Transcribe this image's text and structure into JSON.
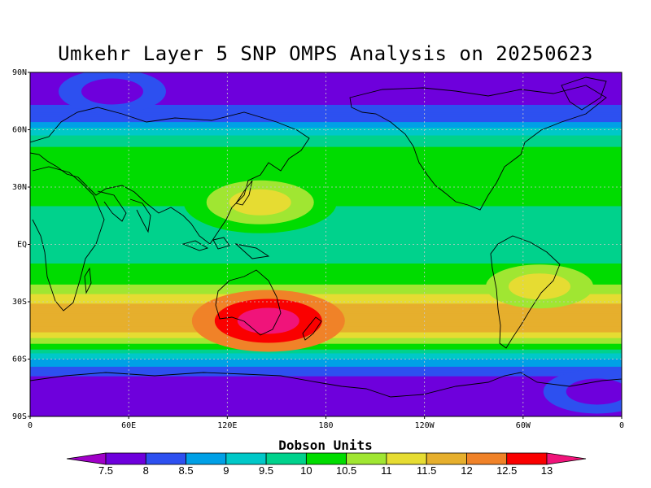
{
  "title": "Umkehr Layer 5 SNP OMPS Analysis on 20250623",
  "colorbar": {
    "label": "Dobson Units",
    "tick_labels": [
      "7.5",
      "8",
      "8.5",
      "9",
      "9.5",
      "10",
      "10.5",
      "11",
      "11.5",
      "12",
      "12.5",
      "13"
    ],
    "colors": [
      "#a000c8",
      "#6e00dc",
      "#2d50f0",
      "#00a0e6",
      "#00c8c8",
      "#00d28c",
      "#00dc00",
      "#a0e632",
      "#e6dc32",
      "#e6af2d",
      "#f08228",
      "#fa0000",
      "#f0147a"
    ]
  },
  "map": {
    "lat_labels": [
      "90N",
      "60N",
      "30N",
      "EQ",
      "30S",
      "60S",
      "90S"
    ],
    "lon_labels": [
      "0",
      "60E",
      "120E",
      "180",
      "120W",
      "60W",
      "0"
    ]
  },
  "chart_data": {
    "type": "heatmap",
    "title": "Umkehr Layer 5 SNP OMPS Analysis on 20250623",
    "quantity": "Dobson Units",
    "x_range": [
      0,
      360
    ],
    "y_range": [
      -90,
      90
    ],
    "grid": true,
    "contour_levels": [
      7.5,
      8,
      8.5,
      9,
      9.5,
      10,
      10.5,
      11,
      11.5,
      12,
      12.5,
      13
    ],
    "zonal_profile": {
      "lat": [
        90,
        75,
        65,
        60,
        55,
        50,
        45,
        40,
        30,
        20,
        10,
        0,
        -10,
        -20,
        -25,
        -30,
        -35,
        -40,
        -45,
        -50,
        -55,
        -60,
        -65,
        -70,
        -80,
        -90
      ],
      "value": [
        7.7,
        7.9,
        8.4,
        9.1,
        9.7,
        10.1,
        10.3,
        10.3,
        10.2,
        10.0,
        9.8,
        9.7,
        10.0,
        10.4,
        10.9,
        11.4,
        11.8,
        12.0,
        11.6,
        10.9,
        9.9,
        9.0,
        8.3,
        7.9,
        7.7,
        7.6
      ]
    },
    "features": [
      {
        "name": "maximum",
        "lon": 145,
        "lat": -40,
        "value": 13.0
      },
      {
        "name": "maximum",
        "lon": 140,
        "lat": 22,
        "value": 11.0
      },
      {
        "name": "maximum",
        "lon": 310,
        "lat": -22,
        "value": 11.0
      },
      {
        "name": "minimum",
        "lon": 50,
        "lat": 80,
        "value": 7.5
      },
      {
        "name": "minimum",
        "lon": 345,
        "lat": -77,
        "value": 7.5
      }
    ]
  }
}
